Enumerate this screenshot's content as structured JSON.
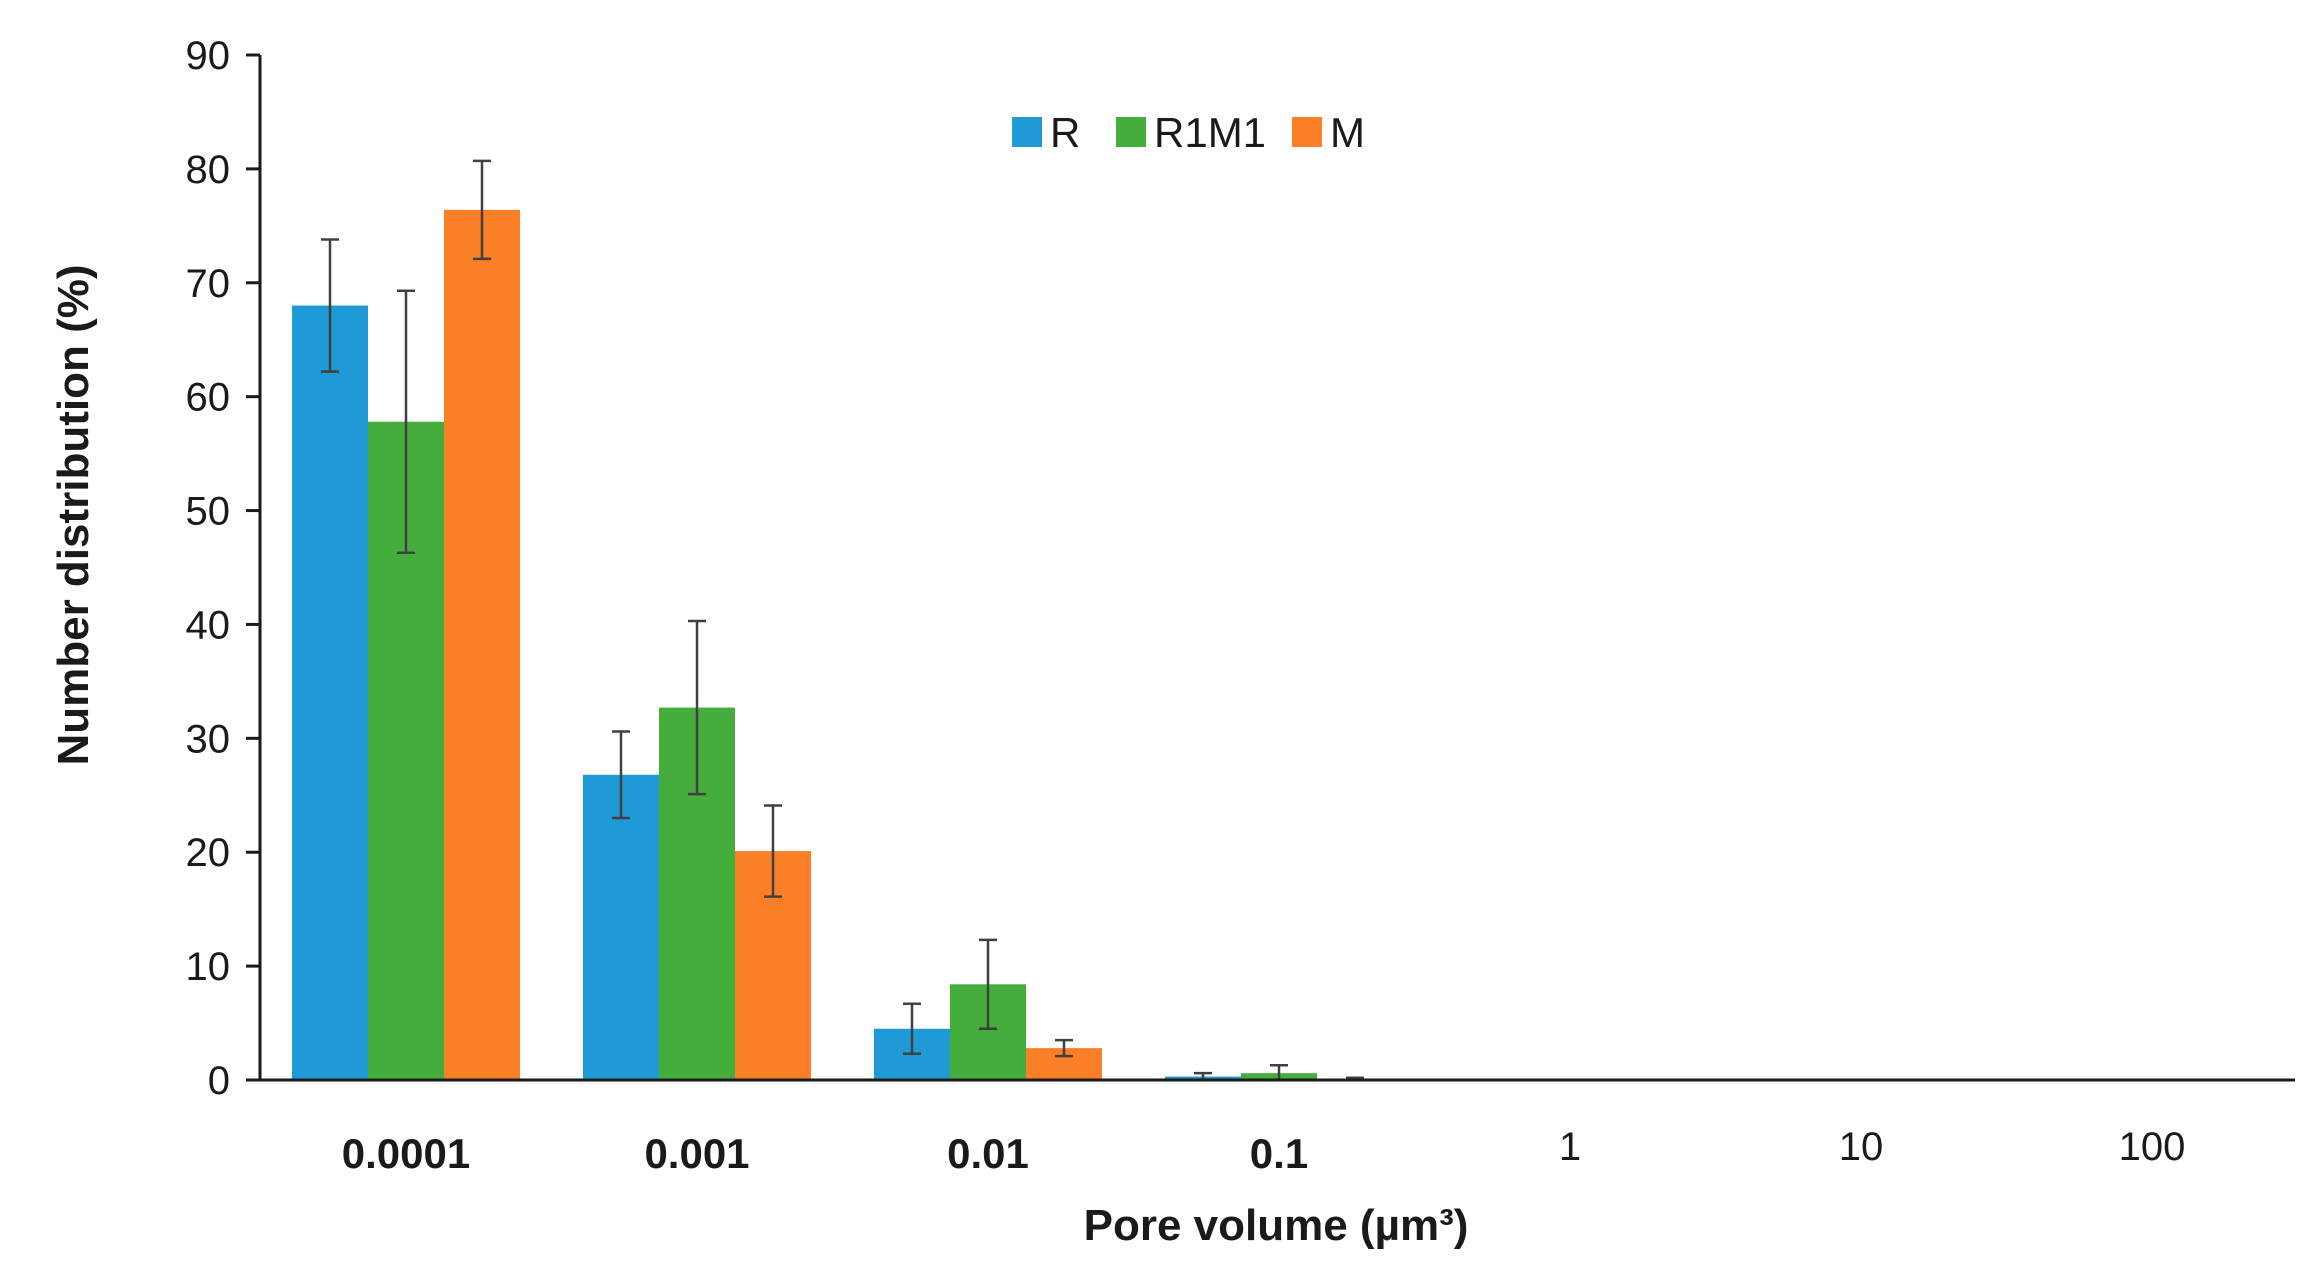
{
  "chart_data": {
    "type": "bar",
    "title": "",
    "xlabel": "Pore volume (µm³)",
    "ylabel": "Number distribution (%)",
    "ylim": [
      0,
      90
    ],
    "yticks": [
      "0",
      "10",
      "20",
      "30",
      "40",
      "50",
      "60",
      "70",
      "80",
      "90"
    ],
    "categories": [
      "0.0001",
      "0.001",
      "0.01",
      "0.1",
      "1",
      "10",
      "100"
    ],
    "bold_categories": [
      "0.0001",
      "0.001",
      "0.01",
      "0.1"
    ],
    "grid": false,
    "legend_position": "top-center",
    "error_bar_color": "#404040",
    "series": [
      {
        "name": "R",
        "color": "#1f9ad6",
        "values": [
          68.0,
          26.8,
          4.5,
          0.3,
          0.0,
          0.0,
          0.0
        ],
        "errors": [
          5.8,
          3.8,
          2.2,
          0.3,
          0.0,
          0.0,
          0.0
        ]
      },
      {
        "name": "R1M1",
        "color": "#44ad3c",
        "values": [
          57.8,
          32.7,
          8.4,
          0.6,
          0.0,
          0.0,
          0.0
        ],
        "errors": [
          11.5,
          7.6,
          3.9,
          0.7,
          0.0,
          0.0,
          0.0
        ]
      },
      {
        "name": "M",
        "color": "#fb7f26",
        "values": [
          76.4,
          20.1,
          2.8,
          0.1,
          0.0,
          0.0,
          0.0
        ],
        "errors": [
          4.3,
          4.0,
          0.7,
          0.1,
          0.0,
          0.0,
          0.0
        ]
      }
    ]
  }
}
